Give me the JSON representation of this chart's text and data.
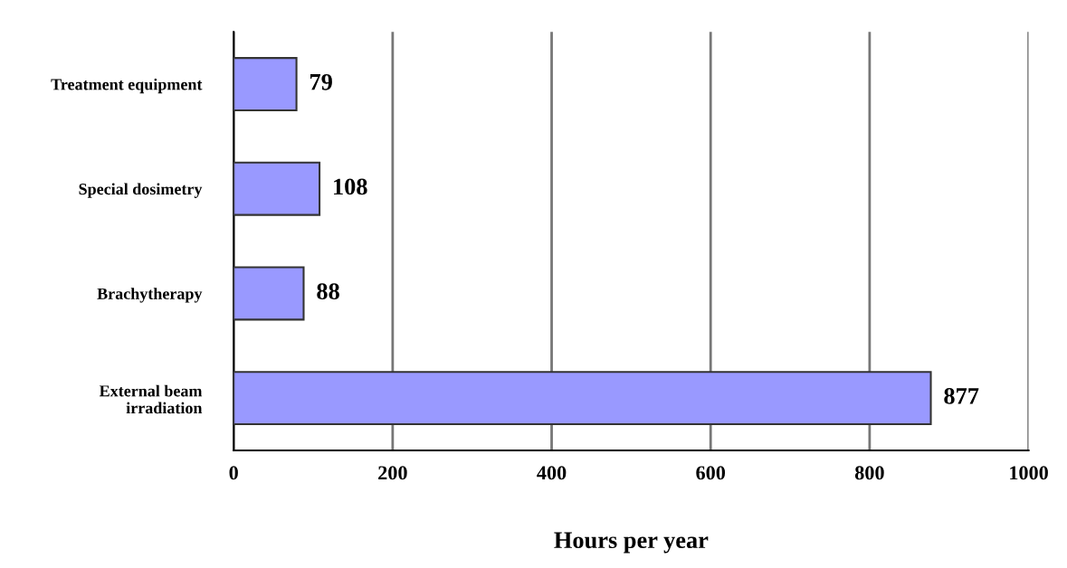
{
  "chart_data": {
    "type": "bar",
    "orientation": "horizontal",
    "xlabel": "Hours per year",
    "categories": [
      "Treatment equipment",
      "Special dosimetry",
      "Brachytherapy",
      "External beam\nirradiation"
    ],
    "values": [
      79,
      108,
      88,
      877
    ],
    "color": "#9999ff",
    "data_labels": true,
    "xlim": [
      0,
      1000
    ],
    "xticks": [
      0,
      200,
      400,
      600,
      800,
      1000
    ],
    "grid": "x",
    "legend": false
  }
}
